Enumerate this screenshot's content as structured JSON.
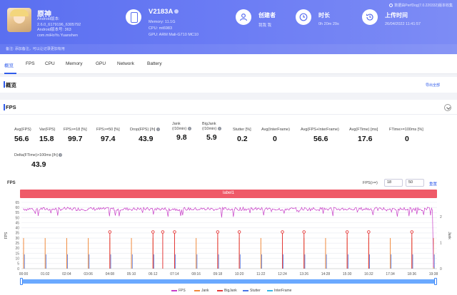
{
  "header": {
    "app": {
      "name": "原神",
      "version_label": "Android版本:",
      "version": "2.6.0_6179196_6305792",
      "android_version": "Android版本号: 363",
      "package": "com.miHoYo.Yuanshen"
    },
    "device": {
      "name": "V2183A",
      "memory": "Memory: 11.1G",
      "cpu": "CPU: mt6983",
      "gpu": "GPU: ARM Mali-G710 MC10"
    },
    "creator": {
      "title": "创建者",
      "value": "我我 我"
    },
    "duration": {
      "title": "时长",
      "value": "0h 20m 29s"
    },
    "upload_time": {
      "title": "上传时间",
      "value": "26/04/2022 11:41:57"
    },
    "watermark": "数据由PerfDog(7.0.220332)版本收集",
    "remark": "备注: 添加备注，可以让记录更加有用"
  },
  "tabs": [
    "概览",
    "FPS",
    "CPU",
    "Memory",
    "GPU",
    "Network",
    "Battery"
  ],
  "overview": {
    "title": "概览",
    "export": "导出全部"
  },
  "fps": {
    "title": "FPS",
    "metrics": [
      {
        "label": "Avg(FPS)",
        "value": "56.6"
      },
      {
        "label": "Var(FPS)",
        "value": "15.8"
      },
      {
        "label": "FPS>=18 [%]",
        "value": "99.7"
      },
      {
        "label": "FPS>=50 [%]",
        "value": "97.4"
      },
      {
        "label": "Drop(FPS) [/h]",
        "value": "43.9"
      },
      {
        "label": "Jank\n(/10min)",
        "value": "9.8"
      },
      {
        "label": "BigJank\n(/10min)",
        "value": "5.9"
      },
      {
        "label": "Stutter [%]",
        "value": "0.2"
      },
      {
        "label": "Avg(InterFrame)",
        "value": "0"
      },
      {
        "label": "Avg(FPS+InterFrame)",
        "value": "56.6"
      },
      {
        "label": "Avg(FTime) [ms]",
        "value": "17.6"
      },
      {
        "label": "FTime>=100ms [%]",
        "value": "0"
      },
      {
        "label": "Delta(FTime)>100ms [/h]",
        "value": "43.9"
      }
    ],
    "chart_title": "FPS",
    "range_label": "FPS(>=)",
    "range_min": "18",
    "range_max": "50",
    "reset": "重置",
    "label_bar": "label1"
  },
  "chart_data": {
    "type": "line",
    "x_ticks": [
      "00:00",
      "01:02",
      "02:04",
      "03:06",
      "04:08",
      "05:10",
      "06:12",
      "07:14",
      "08:16",
      "09:18",
      "10:20",
      "11:22",
      "12:24",
      "13:26",
      "14:28",
      "15:30",
      "16:32",
      "17:34",
      "18:36",
      "19:38"
    ],
    "y_left_ticks": [
      0,
      5,
      10,
      15,
      20,
      25,
      30,
      35,
      40,
      45,
      50,
      55,
      60,
      65
    ],
    "y_right_ticks": [
      0,
      1,
      2
    ],
    "ylabel_left": "FPS",
    "ylabel_right": "Jank",
    "series": [
      {
        "name": "FPS",
        "color": "#c83fc8",
        "approx_level": 58.5
      },
      {
        "name": "Jank",
        "color": "#f08a3c"
      },
      {
        "name": "BigJank",
        "color": "#e43a3a"
      },
      {
        "name": "Stutter",
        "color": "#4a74e6"
      },
      {
        "name": "InterFrame",
        "color": "#3ab8e6"
      }
    ],
    "jank_times": [
      "00:00",
      "01:02",
      "02:04",
      "03:06",
      "04:08",
      "05:10",
      "06:12",
      "07:14",
      "08:16",
      "09:18",
      "10:20",
      "11:22",
      "12:24",
      "13:26",
      "14:28",
      "15:30",
      "16:32",
      "17:34",
      "18:36",
      "19:38"
    ],
    "bigjank_times": [
      "04:08",
      "06:12",
      "06:40",
      "07:14",
      "09:18",
      "10:20",
      "12:24",
      "13:26",
      "15:30",
      "16:32",
      "18:36"
    ]
  }
}
